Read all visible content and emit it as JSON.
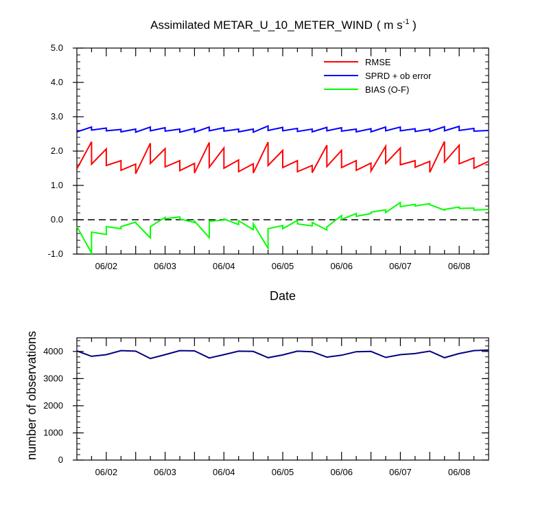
{
  "title": {
    "main": "Assimilated METAR_U_10_METER_WIND",
    "units_prefix": "( m s",
    "units_exp": "-1",
    "units_suffix": " )"
  },
  "chart_data": [
    {
      "type": "line",
      "title": "Assimilated METAR_U_10_METER_WIND ( m s-1 )",
      "xlabel": "Date",
      "ylabel": "",
      "xlim": [
        "2024-06-01T12:00",
        "2024-06-08T12:00"
      ],
      "ylim": [
        -1.0,
        5.0
      ],
      "yticks": [
        "-1.0",
        "0.0",
        "1.0",
        "2.0",
        "3.0",
        "4.0",
        "5.0"
      ],
      "xtick_labels": [
        "06/02",
        "06/03",
        "06/04",
        "06/05",
        "06/06",
        "06/07",
        "06/08"
      ],
      "legend": "top-right",
      "zero_line": "dashed",
      "x": [
        "2024-06-01T12:00",
        "2024-06-01T18:00",
        "2024-06-02T00:00",
        "2024-06-02T06:00",
        "2024-06-02T12:00",
        "2024-06-02T18:00",
        "2024-06-03T00:00",
        "2024-06-03T06:00",
        "2024-06-03T12:00",
        "2024-06-03T18:00",
        "2024-06-04T00:00",
        "2024-06-04T06:00",
        "2024-06-04T12:00",
        "2024-06-04T18:00",
        "2024-06-05T00:00",
        "2024-06-05T06:00",
        "2024-06-05T12:00",
        "2024-06-05T18:00",
        "2024-06-06T00:00",
        "2024-06-06T06:00",
        "2024-06-06T12:00",
        "2024-06-06T18:00",
        "2024-06-07T00:00",
        "2024-06-07T06:00",
        "2024-06-07T12:00",
        "2024-06-07T18:00",
        "2024-06-08T00:00",
        "2024-06-08T06:00",
        "2024-06-08T12:00"
      ],
      "series": [
        {
          "name": "RMSE",
          "color": "#ff0000",
          "pre": [
            null,
            2.27,
            2.06,
            1.72,
            1.62,
            2.23,
            2.07,
            1.72,
            1.64,
            2.25,
            2.09,
            1.74,
            1.63,
            2.26,
            2.02,
            1.72,
            1.58,
            2.17,
            2.02,
            1.72,
            1.65,
            2.14,
            2.09,
            1.72,
            1.7,
            2.28,
            2.17,
            1.8,
            1.7
          ],
          "post": [
            1.48,
            1.62,
            1.58,
            1.44,
            1.34,
            1.64,
            1.54,
            1.43,
            1.36,
            1.53,
            1.5,
            1.4,
            1.36,
            1.58,
            1.52,
            1.4,
            1.37,
            1.55,
            1.52,
            1.44,
            1.42,
            1.64,
            1.6,
            1.53,
            1.38,
            1.68,
            1.63,
            1.5,
            null
          ]
        },
        {
          "name": "SPRD + ob error",
          "color": "#0000ff",
          "pre": [
            null,
            2.7,
            2.67,
            2.63,
            2.64,
            2.7,
            2.68,
            2.64,
            2.66,
            2.7,
            2.68,
            2.64,
            2.64,
            2.73,
            2.69,
            2.66,
            2.64,
            2.69,
            2.68,
            2.64,
            2.65,
            2.7,
            2.7,
            2.65,
            2.64,
            2.71,
            2.72,
            2.66,
            2.6
          ],
          "post": [
            2.56,
            2.61,
            2.59,
            2.56,
            2.55,
            2.59,
            2.58,
            2.55,
            2.55,
            2.59,
            2.58,
            2.56,
            2.55,
            2.6,
            2.59,
            2.57,
            2.56,
            2.59,
            2.58,
            2.56,
            2.56,
            2.59,
            2.59,
            2.57,
            2.57,
            2.59,
            2.6,
            2.58,
            null
          ]
        },
        {
          "name": "BIAS (O-F)",
          "color": "#00ff00",
          "pre": [
            null,
            -0.97,
            -0.43,
            -0.26,
            -0.07,
            -0.53,
            0.07,
            0.08,
            -0.08,
            -0.52,
            -0.01,
            -0.14,
            -0.29,
            -0.83,
            -0.17,
            -0.02,
            -0.18,
            -0.3,
            0.12,
            0.18,
            0.18,
            0.29,
            0.5,
            0.45,
            0.47,
            0.28,
            0.37,
            0.34,
            0.3
          ],
          "post": [
            -0.2,
            -0.36,
            -0.2,
            -0.2,
            -0.09,
            -0.2,
            0.03,
            0.02,
            -0.04,
            -0.04,
            0.02,
            -0.03,
            -0.12,
            -0.26,
            -0.26,
            -0.12,
            -0.08,
            -0.21,
            0.01,
            0.1,
            0.22,
            0.21,
            0.38,
            0.4,
            0.44,
            0.3,
            0.33,
            0.28,
            null
          ]
        }
      ]
    },
    {
      "type": "line",
      "xlabel": "",
      "ylabel": "number of observations",
      "xlim": [
        "2024-06-01T12:00",
        "2024-06-08T12:00"
      ],
      "ylim": [
        0,
        4500
      ],
      "yticks": [
        "0",
        "1000",
        "2000",
        "3000",
        "4000"
      ],
      "xtick_labels": [
        "06/02",
        "06/03",
        "06/04",
        "06/05",
        "06/06",
        "06/07",
        "06/08"
      ],
      "x": [
        "2024-06-01T12:00",
        "2024-06-01T18:00",
        "2024-06-02T00:00",
        "2024-06-02T06:00",
        "2024-06-02T12:00",
        "2024-06-02T18:00",
        "2024-06-03T00:00",
        "2024-06-03T06:00",
        "2024-06-03T12:00",
        "2024-06-03T18:00",
        "2024-06-04T00:00",
        "2024-06-04T06:00",
        "2024-06-04T12:00",
        "2024-06-04T18:00",
        "2024-06-05T00:00",
        "2024-06-05T06:00",
        "2024-06-05T12:00",
        "2024-06-05T18:00",
        "2024-06-06T00:00",
        "2024-06-06T06:00",
        "2024-06-06T12:00",
        "2024-06-06T18:00",
        "2024-06-07T00:00",
        "2024-06-07T06:00",
        "2024-06-07T12:00",
        "2024-06-07T18:00",
        "2024-06-08T00:00",
        "2024-06-08T06:00",
        "2024-06-08T12:00"
      ],
      "series": [
        {
          "color": "#000080",
          "values": [
            4020,
            3820,
            3880,
            4030,
            4010,
            3740,
            3880,
            4030,
            4020,
            3760,
            3880,
            4010,
            4000,
            3770,
            3870,
            4010,
            3990,
            3790,
            3860,
            3990,
            4000,
            3780,
            3880,
            3920,
            4010,
            3770,
            3920,
            4030,
            4050
          ]
        }
      ]
    }
  ]
}
